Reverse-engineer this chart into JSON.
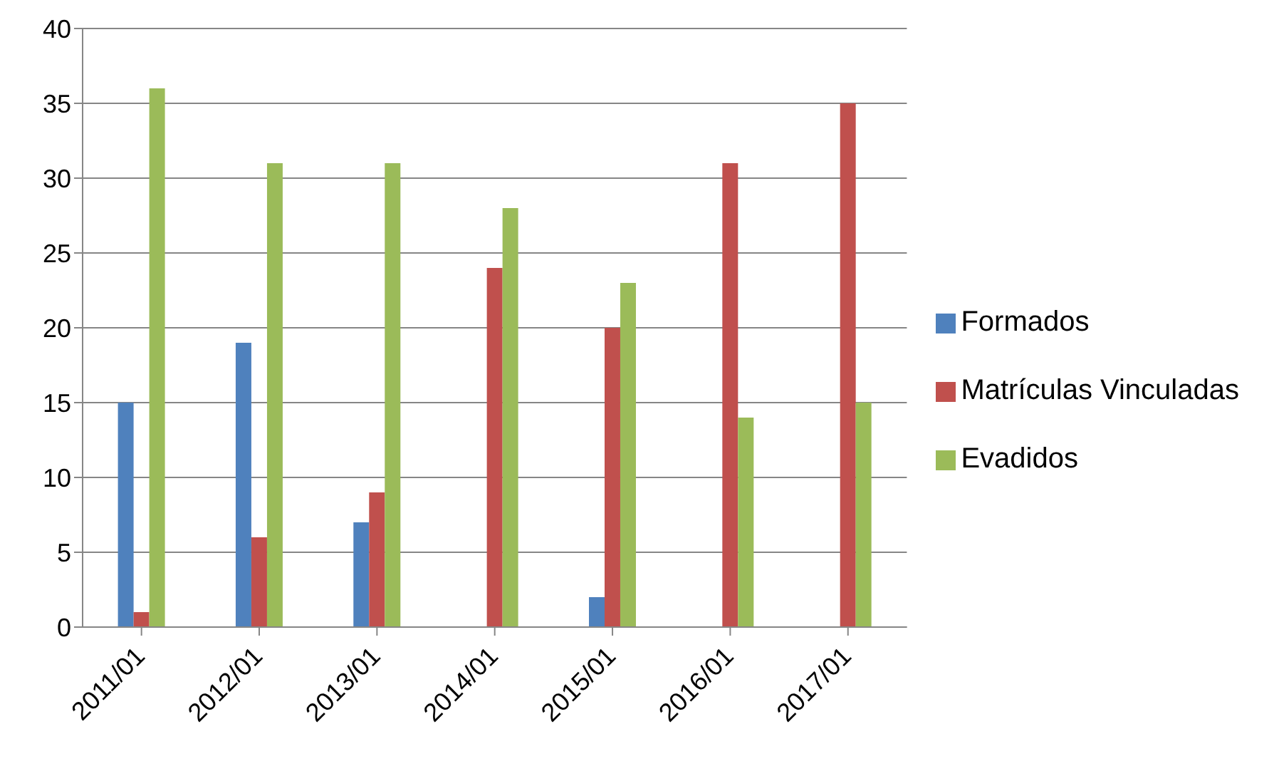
{
  "chart_data": {
    "type": "bar",
    "categories": [
      "2011/01",
      "2012/01",
      "2013/01",
      "2014/01",
      "2015/01",
      "2016/01",
      "2017/01"
    ],
    "series": [
      {
        "name": "Formados",
        "color": "#4f81bd",
        "values": [
          15,
          19,
          7,
          null,
          2,
          null,
          null
        ]
      },
      {
        "name": "Matrículas Vinculadas",
        "color": "#c0504d",
        "values": [
          1,
          6,
          9,
          24,
          20,
          31,
          35
        ]
      },
      {
        "name": "Evadidos",
        "color": "#9bbb59",
        "values": [
          36,
          31,
          31,
          28,
          23,
          14,
          15
        ]
      }
    ],
    "ylim": [
      0,
      40
    ],
    "yticks": [
      0,
      5,
      10,
      15,
      20,
      25,
      30,
      35,
      40
    ],
    "grid": "y",
    "legend": "right"
  }
}
